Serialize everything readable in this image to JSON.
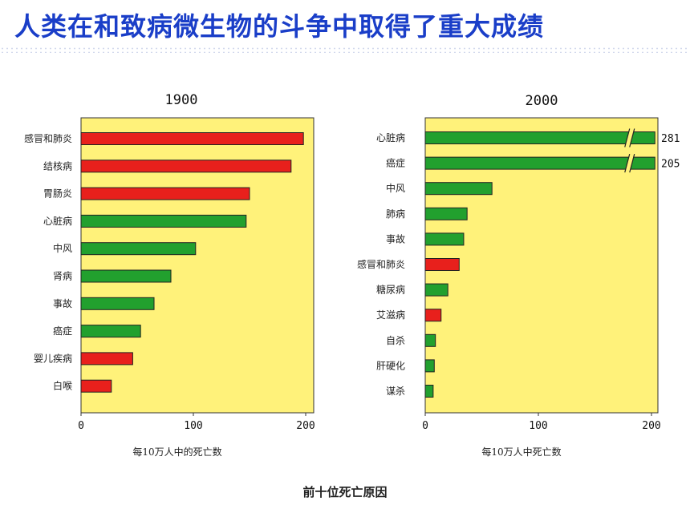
{
  "headline": "人类在和致病微生物的斗争中取得了重大成绩",
  "caption": "前十位死亡原因",
  "chart_data": [
    {
      "type": "bar",
      "title": "1900",
      "categories": [
        "感冒和肺炎",
        "结核病",
        "胃肠炎",
        "心脏病",
        "中风",
        "肾病",
        "事故",
        "癌症",
        "婴儿疾病",
        "白喉"
      ],
      "values": [
        198,
        187,
        150,
        147,
        102,
        80,
        65,
        53,
        46,
        27
      ],
      "bar_colors": [
        "#e8201c",
        "#e8201c",
        "#e8201c",
        "#22a02e",
        "#22a02e",
        "#22a02e",
        "#22a02e",
        "#22a02e",
        "#e8201c",
        "#e8201c"
      ],
      "xlabel": "每10万人中的死亡数",
      "xlim": [
        0,
        200
      ],
      "xticks": [
        "0",
        "100",
        "200"
      ],
      "background": "#fff27a"
    },
    {
      "type": "bar",
      "title": "2000",
      "categories": [
        "心脏病",
        "癌症",
        "中风",
        "肺病",
        "事故",
        "感冒和肺炎",
        "糖尿病",
        "艾滋病",
        "自杀",
        "肝硬化",
        "谋杀"
      ],
      "values": [
        281,
        205,
        59,
        37,
        34,
        30,
        20,
        14,
        9,
        8,
        7
      ],
      "value_labels": [
        "281",
        "205",
        "",
        "",
        "",
        "",
        "",
        "",
        "",
        "",
        ""
      ],
      "bar_colors": [
        "#22a02e",
        "#22a02e",
        "#22a02e",
        "#22a02e",
        "#22a02e",
        "#e8201c",
        "#22a02e",
        "#e8201c",
        "#22a02e",
        "#22a02e",
        "#22a02e"
      ],
      "axis_break_above": 175,
      "xlabel": "每10万人中死亡数",
      "xlim": [
        0,
        200
      ],
      "xticks": [
        "0",
        "100",
        "200"
      ],
      "background": "#fff27a"
    }
  ]
}
